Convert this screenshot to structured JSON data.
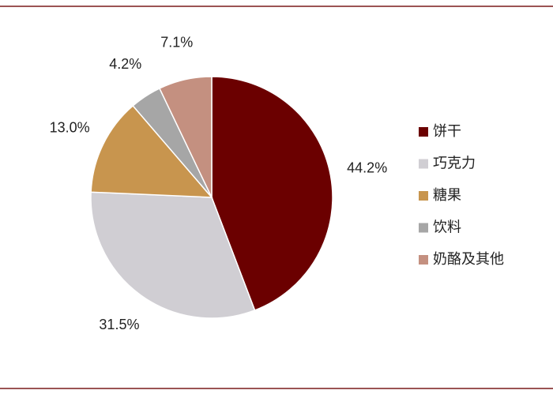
{
  "chart_data": {
    "type": "pie",
    "categories": [
      "饼干",
      "巧克力",
      "糖果",
      "饮料",
      "奶酪及其他"
    ],
    "values": [
      44.2,
      31.5,
      13.0,
      4.2,
      7.1
    ],
    "value_labels": [
      "44.2%",
      "31.5%",
      "13.0%",
      "4.2%",
      "7.1%"
    ],
    "colors": [
      "#6b0000",
      "#d0ced3",
      "#c8954e",
      "#a6a6a6",
      "#c49080"
    ],
    "legend": "right"
  }
}
